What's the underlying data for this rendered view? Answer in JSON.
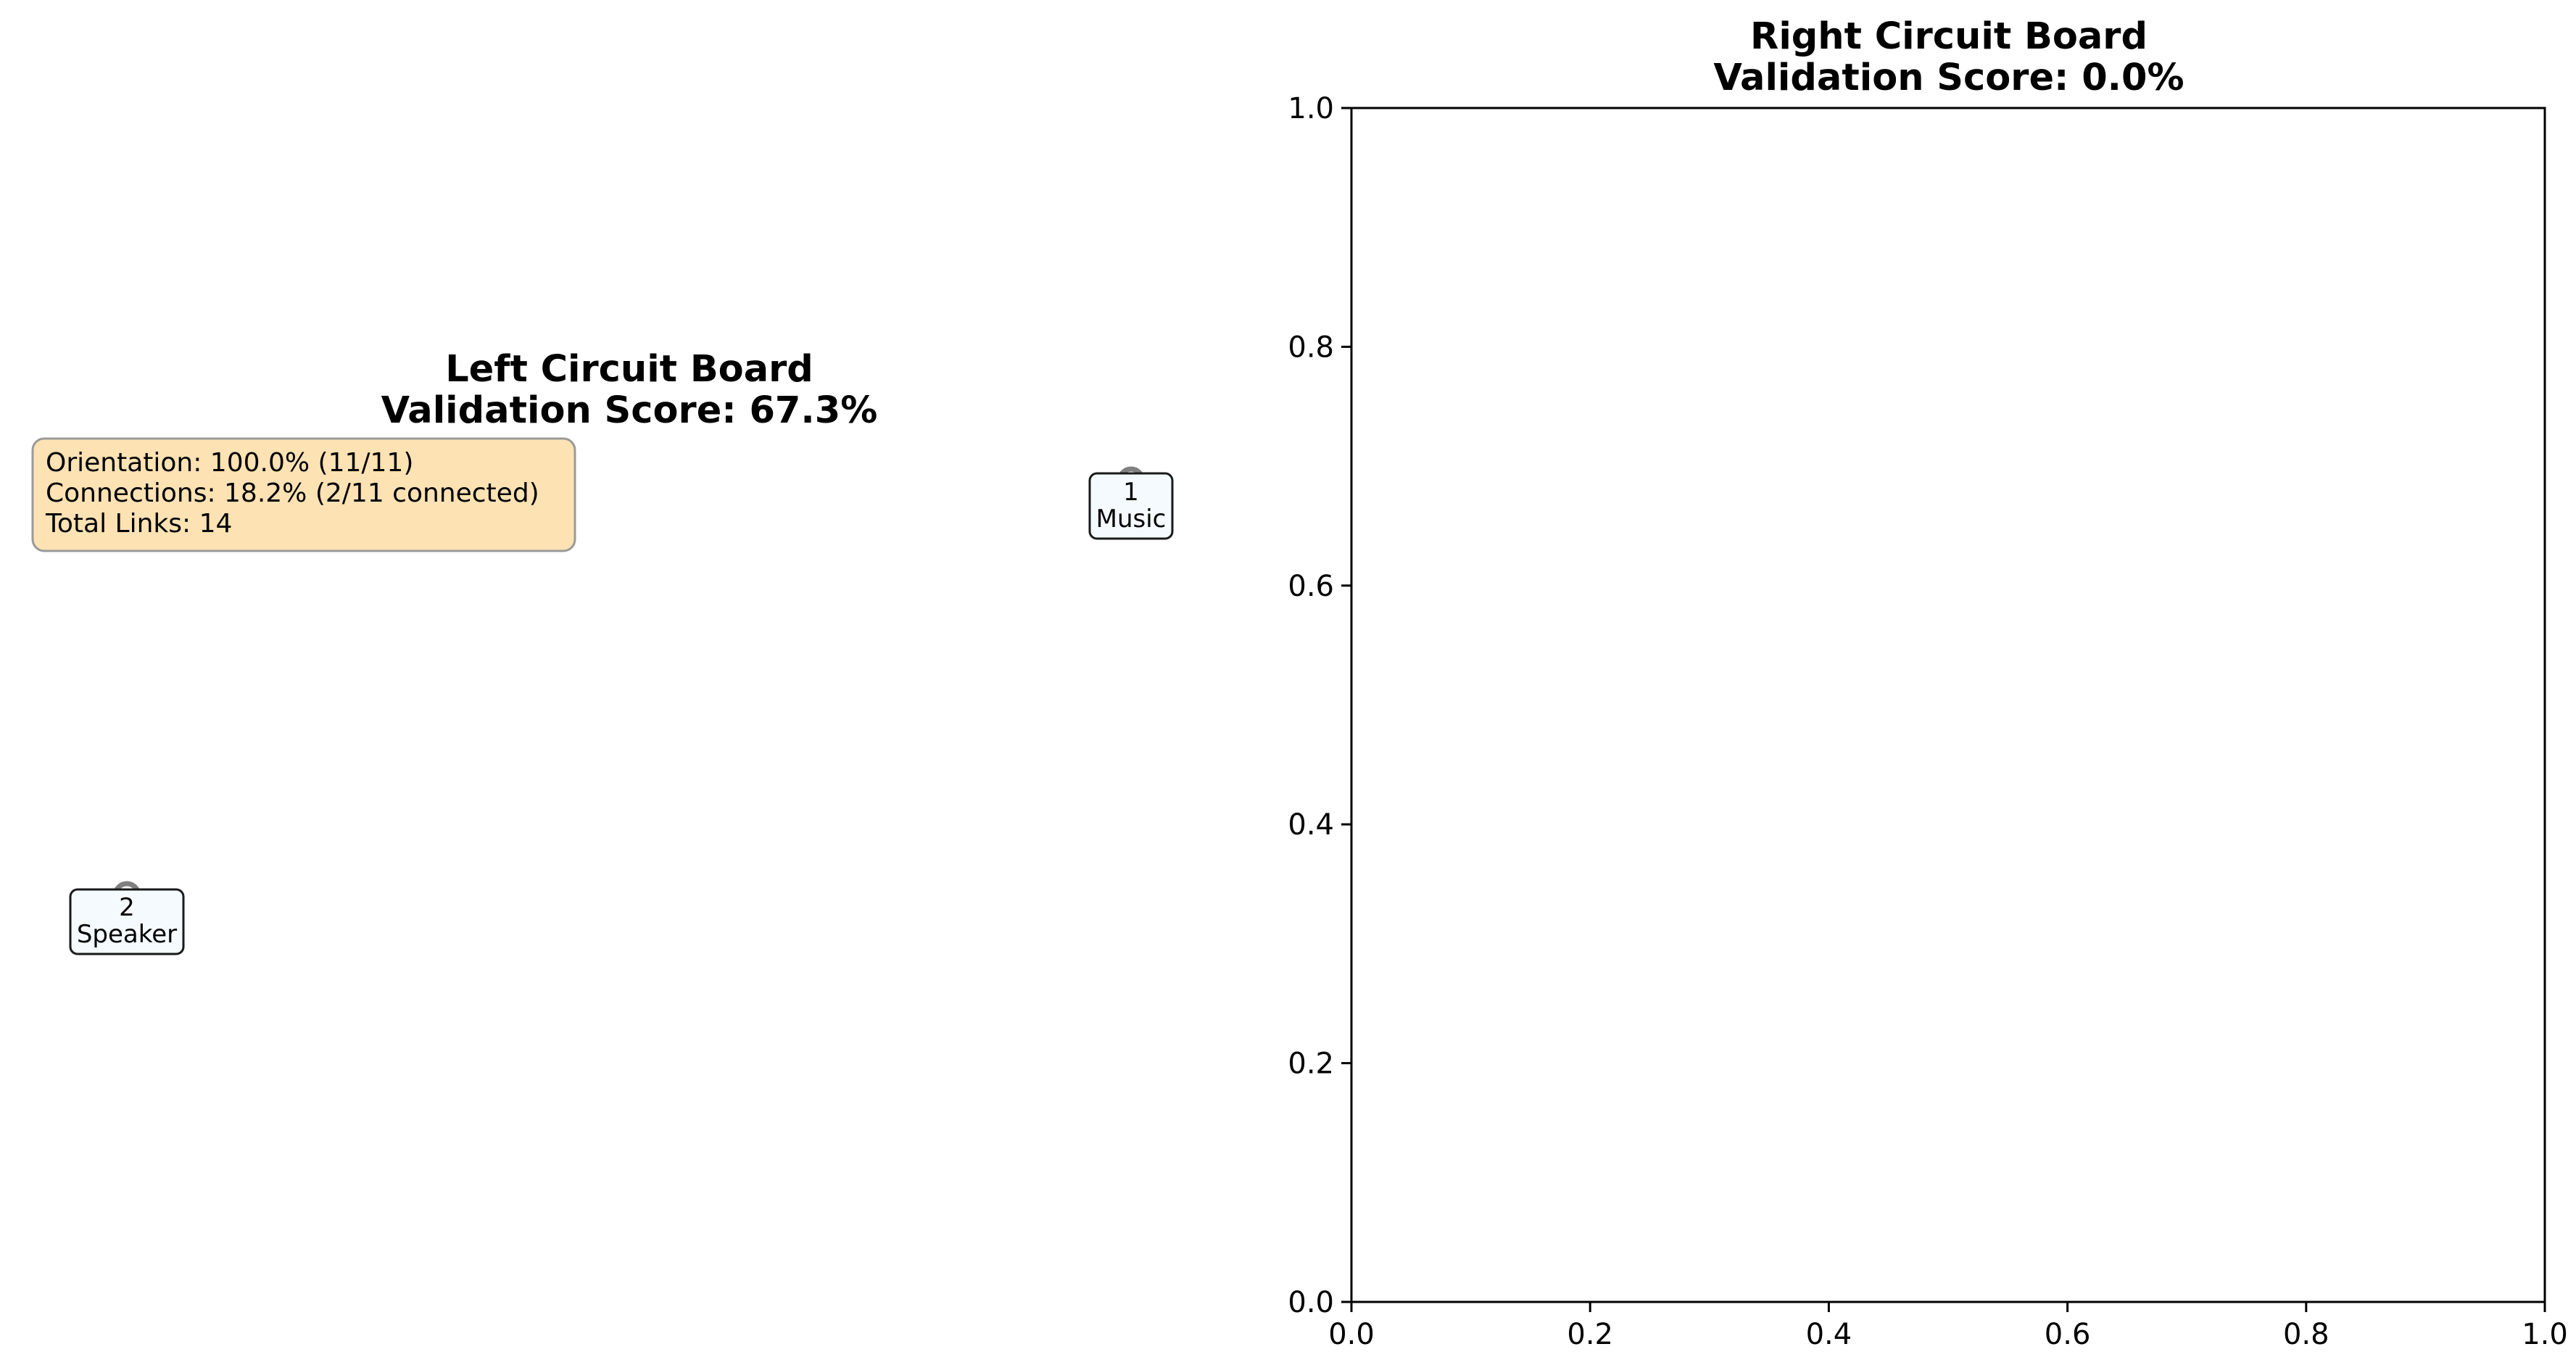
{
  "chart_data": [
    {
      "type": "diagram",
      "title": "Left Circuit Board",
      "subtitle": "Validation Score: 67.3%",
      "info_box": {
        "lines": [
          "Orientation: 100.0% (11/11)",
          "Connections: 18.2% (2/11 connected)",
          "Total Links: 14"
        ],
        "background": "#fde2b4"
      },
      "nodes": [
        {
          "id": "1",
          "label": "Music"
        },
        {
          "id": "2",
          "label": "Speaker"
        }
      ],
      "axis": "off"
    },
    {
      "type": "scatter",
      "title": "Right Circuit Board",
      "subtitle": "Validation Score: 0.0%",
      "xlim": [
        0.0,
        1.0
      ],
      "ylim": [
        0.0,
        1.0
      ],
      "xticks": [
        "0.0",
        "0.2",
        "0.4",
        "0.6",
        "0.8",
        "1.0"
      ],
      "yticks": [
        "0.0",
        "0.2",
        "0.4",
        "0.6",
        "0.8",
        "1.0"
      ],
      "series": [],
      "grid": false
    }
  ]
}
